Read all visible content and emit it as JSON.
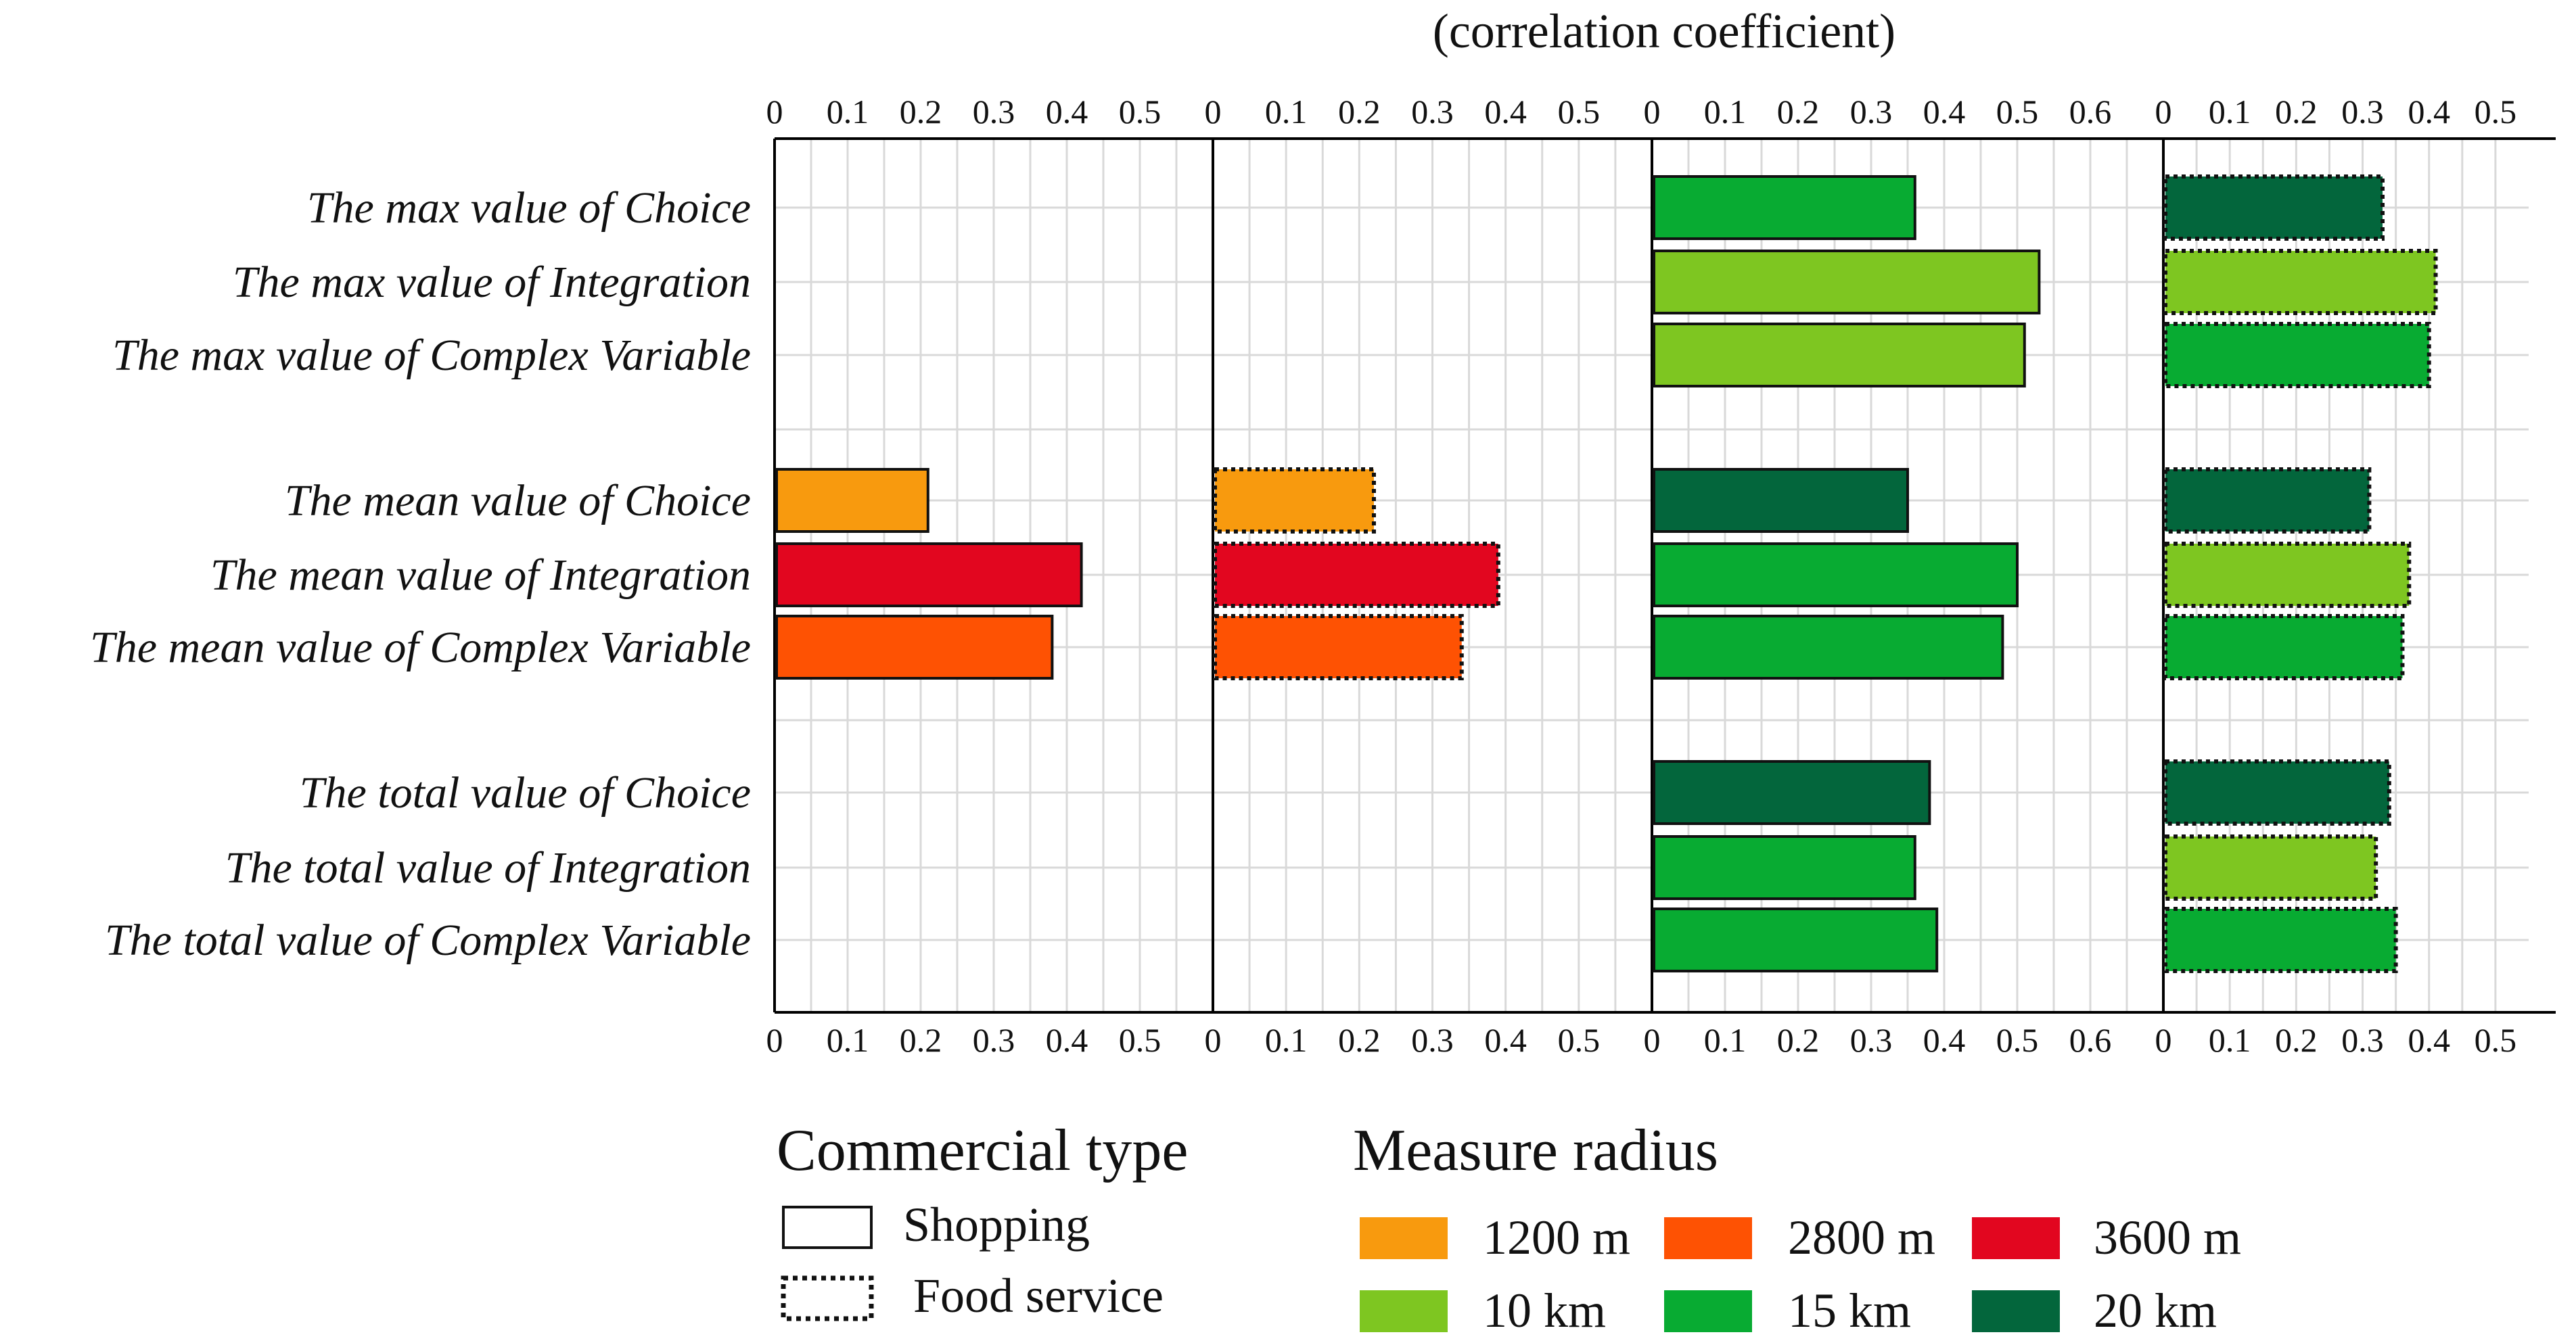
{
  "title": "(correlation coefficient)",
  "chart_data": {
    "type": "bar",
    "orientation": "horizontal",
    "title": "(correlation coefficient)",
    "categories": [
      "The max value of Choice",
      "The max value of Integration",
      "The max value of Complex Variable",
      "The mean value of Choice",
      "The mean value of Integration",
      "The mean value of Complex Variable",
      "The total value of Choice",
      "The total value of Integration",
      "The  total value of Complex Variable"
    ],
    "panels": [
      {
        "commercial_type": "Shopping",
        "xlim": [
          0,
          0.6
        ],
        "ticks": [
          "0",
          "0.1",
          "0.2",
          "0.3",
          "0.4",
          "0.5"
        ],
        "bars": [
          {
            "category": 3,
            "value": 0.21,
            "radius": "1200 m"
          },
          {
            "category": 4,
            "value": 0.42,
            "radius": "3600 m"
          },
          {
            "category": 5,
            "value": 0.38,
            "radius": "2800 m"
          }
        ]
      },
      {
        "commercial_type": "Food service",
        "xlim": [
          0,
          0.6
        ],
        "ticks": [
          "0",
          "0.1",
          "0.2",
          "0.3",
          "0.4",
          "0.5"
        ],
        "bars": [
          {
            "category": 3,
            "value": 0.22,
            "radius": "1200 m"
          },
          {
            "category": 4,
            "value": 0.39,
            "radius": "3600 m"
          },
          {
            "category": 5,
            "value": 0.34,
            "radius": "2800 m"
          }
        ]
      },
      {
        "commercial_type": "Shopping",
        "xlim": [
          0,
          0.7
        ],
        "ticks": [
          "0",
          "0.1",
          "0.2",
          "0.3",
          "0.4",
          "0.5",
          "0.6"
        ],
        "bars": [
          {
            "category": 0,
            "value": 0.36,
            "radius": "15 km"
          },
          {
            "category": 1,
            "value": 0.53,
            "radius": "10 km"
          },
          {
            "category": 2,
            "value": 0.51,
            "radius": "10 km"
          },
          {
            "category": 3,
            "value": 0.35,
            "radius": "20 km"
          },
          {
            "category": 4,
            "value": 0.5,
            "radius": "15 km"
          },
          {
            "category": 5,
            "value": 0.48,
            "radius": "15 km"
          },
          {
            "category": 6,
            "value": 0.38,
            "radius": "20 km"
          },
          {
            "category": 7,
            "value": 0.36,
            "radius": "15 km"
          },
          {
            "category": 8,
            "value": 0.39,
            "radius": "15 km"
          }
        ]
      },
      {
        "commercial_type": "Food service",
        "xlim": [
          0,
          0.55
        ],
        "ticks": [
          "0",
          "0.1",
          "0.2",
          "0.3",
          "0.4",
          "0.5"
        ],
        "bars": [
          {
            "category": 0,
            "value": 0.33,
            "radius": "20 km"
          },
          {
            "category": 1,
            "value": 0.41,
            "radius": "10 km"
          },
          {
            "category": 2,
            "value": 0.4,
            "radius": "15 km"
          },
          {
            "category": 3,
            "value": 0.31,
            "radius": "20 km"
          },
          {
            "category": 4,
            "value": 0.37,
            "radius": "10 km"
          },
          {
            "category": 5,
            "value": 0.36,
            "radius": "15 km"
          },
          {
            "category": 6,
            "value": 0.34,
            "radius": "20 km"
          },
          {
            "category": 7,
            "value": 0.32,
            "radius": "10 km"
          },
          {
            "category": 8,
            "value": 0.35,
            "radius": "15 km"
          }
        ]
      }
    ],
    "grid": true
  },
  "legend": {
    "commercial_type": {
      "title": "Commercial type",
      "items": [
        {
          "label": "Shopping",
          "style": "solid"
        },
        {
          "label": "Food service",
          "style": "dotted"
        }
      ]
    },
    "measure_radius": {
      "title": "Measure radius",
      "items": [
        {
          "label": "1200 m",
          "color": "#f89a0e"
        },
        {
          "label": "2800 m",
          "color": "#fe5203"
        },
        {
          "label": "3600 m",
          "color": "#e2061f"
        },
        {
          "label": "10 km",
          "color": "#7ec621"
        },
        {
          "label": "15 km",
          "color": "#08ab32"
        },
        {
          "label": "20 km",
          "color": "#03663c"
        }
      ]
    }
  }
}
